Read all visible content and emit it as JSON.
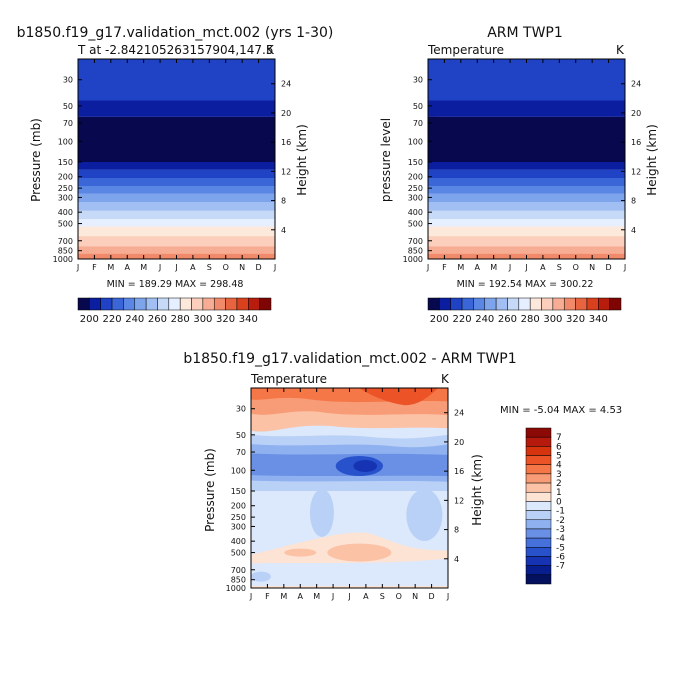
{
  "chart_data": [
    {
      "type": "heatmap",
      "name": "model",
      "title": "b1850.f19_g17.validation_mct.002 (yrs 1-30)",
      "subtitle": "T at -2.842105263157904,147.5",
      "units_label": "K",
      "xlabel": "",
      "ylabel": "Pressure (mb)",
      "y2label": "Height (km)",
      "months": [
        "J",
        "F",
        "M",
        "A",
        "M",
        "J",
        "J",
        "A",
        "S",
        "O",
        "N",
        "D",
        "J"
      ],
      "pressure_ticks": [
        30,
        50,
        70,
        100,
        150,
        200,
        250,
        300,
        400,
        500,
        700,
        850,
        1000
      ],
      "height_ticks": [
        24,
        20,
        16,
        12,
        8,
        4
      ],
      "ylim": [
        1000,
        20
      ],
      "minmax_label": "MIN = 189.29 MAX = 298.48",
      "min": 189.29,
      "max": 298.48,
      "colorbar_key": "abs"
    },
    {
      "type": "heatmap",
      "name": "obs",
      "title": "ARM TWP1",
      "subtitle": "Temperature",
      "units_label": "K",
      "xlabel": "",
      "ylabel": "pressure level",
      "y2label": "Height (km)",
      "months": [
        "J",
        "F",
        "M",
        "A",
        "M",
        "J",
        "J",
        "A",
        "S",
        "O",
        "N",
        "D",
        "J"
      ],
      "pressure_ticks": [
        30,
        50,
        70,
        100,
        150,
        200,
        250,
        300,
        400,
        500,
        700,
        850,
        1000
      ],
      "height_ticks": [
        24,
        20,
        16,
        12,
        8,
        4
      ],
      "ylim": [
        1000,
        20
      ],
      "minmax_label": "MIN = 192.54 MAX = 300.22",
      "min": 192.54,
      "max": 300.22,
      "colorbar_key": "abs"
    },
    {
      "type": "heatmap",
      "name": "diff",
      "title": "b1850.f19_g17.validation_mct.002 - ARM TWP1",
      "subtitle": "Temperature",
      "units_label": "K",
      "xlabel": "",
      "ylabel": "Pressure (mb)",
      "y2label": "Height (km)",
      "months": [
        "J",
        "F",
        "M",
        "A",
        "M",
        "J",
        "J",
        "A",
        "S",
        "O",
        "N",
        "D",
        "J"
      ],
      "pressure_ticks": [
        30,
        50,
        70,
        100,
        150,
        200,
        250,
        300,
        400,
        500,
        700,
        850,
        1000
      ],
      "height_ticks": [
        24,
        20,
        16,
        12,
        8,
        4
      ],
      "ylim": [
        1000,
        20
      ],
      "minmax_label": "MIN = -5.04 MAX = 4.53",
      "min": -5.04,
      "max": 4.53,
      "colorbar_key": "diff"
    }
  ],
  "colorbars": {
    "abs": {
      "orientation": "horizontal",
      "levels": [
        190,
        200,
        210,
        220,
        230,
        240,
        250,
        260,
        270,
        280,
        290,
        300,
        310,
        320,
        330,
        340
      ],
      "labels": [
        "200",
        "220",
        "240",
        "260",
        "280",
        "300",
        "320",
        "340"
      ],
      "colors": [
        "#08084f",
        "#0b1ea0",
        "#1f43c4",
        "#3a66d8",
        "#5a86e4",
        "#7ea4ec",
        "#a2bff3",
        "#c6daf8",
        "#e6efff",
        "#fde8dc",
        "#fbcfbc",
        "#f7ad93",
        "#f18a6b",
        "#e8633f",
        "#d8401e",
        "#b71c0c",
        "#7e0504"
      ]
    },
    "diff": {
      "orientation": "vertical",
      "labels": [
        "7",
        "6",
        "5",
        "4",
        "3",
        "2",
        "1",
        "0",
        "-1",
        "-2",
        "-3",
        "-4",
        "-5",
        "-6",
        "-7"
      ],
      "colors": [
        "#8c0a05",
        "#b51a0c",
        "#d6340f",
        "#ec5428",
        "#f57748",
        "#f89c77",
        "#fbc2a6",
        "#fde3d4",
        "#dce8fb",
        "#b9d0f7",
        "#8fb1ef",
        "#6a90e6",
        "#4670da",
        "#2851cc",
        "#1533b3",
        "#081d8e",
        "#04115f"
      ]
    }
  }
}
